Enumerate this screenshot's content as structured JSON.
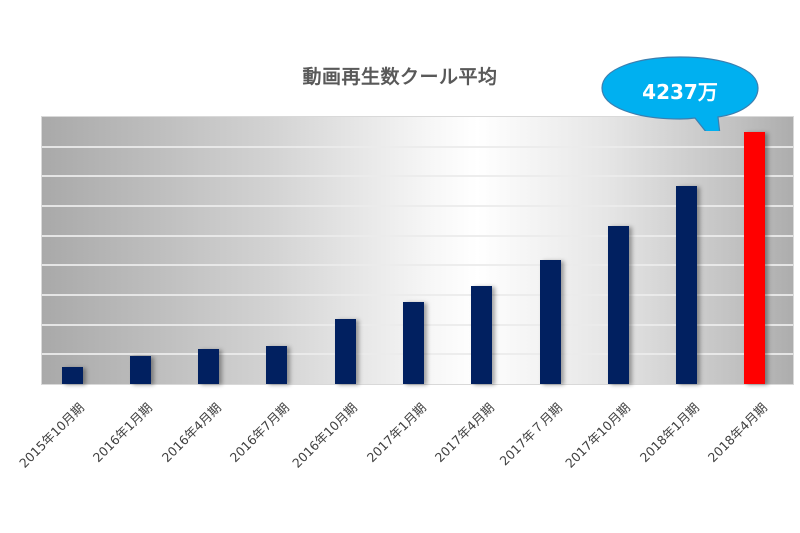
{
  "chart_data": {
    "type": "bar",
    "title": "動画再生数クール平均",
    "xlabel": "",
    "ylabel": "",
    "categories": [
      "2015年10月期",
      "2016年1月期",
      "2016年4月期",
      "2016年7月期",
      "2016年10月期",
      "2017年1月期",
      "2017年4月期",
      "2017年７月期",
      "2017年10月期",
      "2018年1月期",
      "2018年4月期"
    ],
    "values": [
      286,
      471,
      588,
      639,
      1093,
      1379,
      1648,
      2085,
      2656,
      3329,
      4237
    ],
    "unit": "万",
    "ylim": [
      0,
      4490
    ],
    "grid": true,
    "gridlines": 9,
    "bar_color": "#012060",
    "highlight_color": "#ff0000",
    "highlight_index": 10,
    "annotation": {
      "text": "4237万",
      "target": "2018年4月期",
      "shape": "speech-bubble",
      "color": "#00b0f0"
    }
  }
}
